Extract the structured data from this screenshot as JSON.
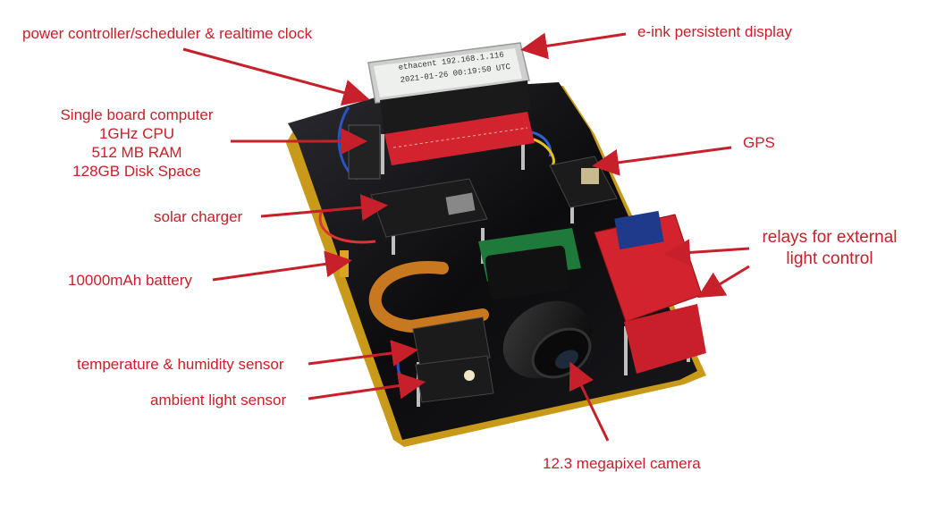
{
  "labels": {
    "power_controller": "power controller/scheduler & realtime clock",
    "eink": "e-ink persistent display",
    "sbc_title": "Single board computer",
    "sbc_cpu": "1GHz CPU",
    "sbc_ram": "512 MB RAM",
    "sbc_disk": "128GB Disk Space",
    "gps": "GPS",
    "solar": "solar charger",
    "relays_line1": "relays for external",
    "relays_line2": "light control",
    "battery": "10000mAh battery",
    "temperature": "temperature & humidity sensor",
    "ambient": "ambient light sensor",
    "camera": "12.3 megapixel camera"
  },
  "eink_screen": {
    "line1": "ethacent 192.168.1.116",
    "line2": "2021-01-26 00:19:50 UTC"
  },
  "colors": {
    "label_red": "#c8202a",
    "arrow_red": "#c8202a",
    "board_black": "#0c0c0e",
    "pcb_red": "#d2232f",
    "pcb_black": "#1b1b1b",
    "ribbon_orange": "#c8781e"
  }
}
